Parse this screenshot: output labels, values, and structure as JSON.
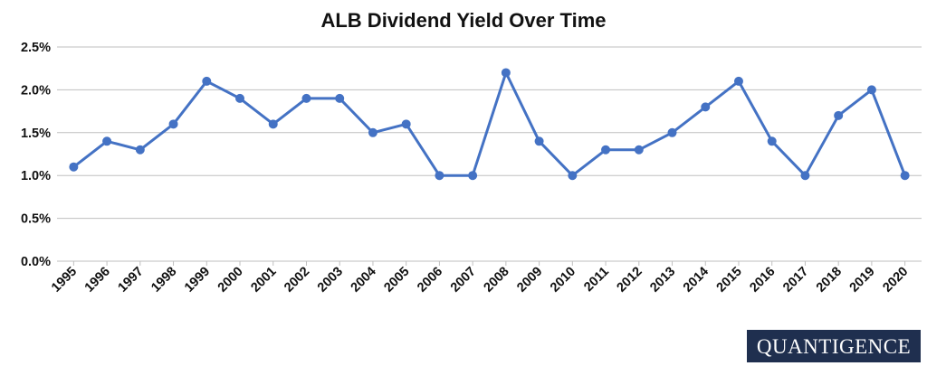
{
  "chart_data": {
    "type": "line",
    "title": "ALB Dividend Yield Over Time",
    "xlabel": "",
    "ylabel": "",
    "x": [
      "1995",
      "1996",
      "1997",
      "1998",
      "1999",
      "2000",
      "2001",
      "2002",
      "2003",
      "2004",
      "2005",
      "2006",
      "2007",
      "2008",
      "2009",
      "2010",
      "2011",
      "2012",
      "2013",
      "2014",
      "2015",
      "2016",
      "2017",
      "2018",
      "2019",
      "2020"
    ],
    "series": [
      {
        "values": [
          1.1,
          1.4,
          1.3,
          1.6,
          2.1,
          1.9,
          1.6,
          1.9,
          1.9,
          1.5,
          1.6,
          1.0,
          1.0,
          2.2,
          1.4,
          1.0,
          1.3,
          1.3,
          1.5,
          1.8,
          2.1,
          1.4,
          1.0,
          1.7,
          2.0,
          1.0
        ]
      }
    ],
    "ylim": [
      0,
      2.5
    ],
    "yticks": [
      "0.0%",
      "0.5%",
      "1.0%",
      "1.5%",
      "2.0%",
      "2.5%"
    ],
    "grid": true,
    "legend": "none",
    "line_color": "#4472c4",
    "grid_color": "#bfbfbf"
  },
  "watermark": {
    "text": "QUANTIGENCE",
    "background": "#1f2f4f"
  }
}
